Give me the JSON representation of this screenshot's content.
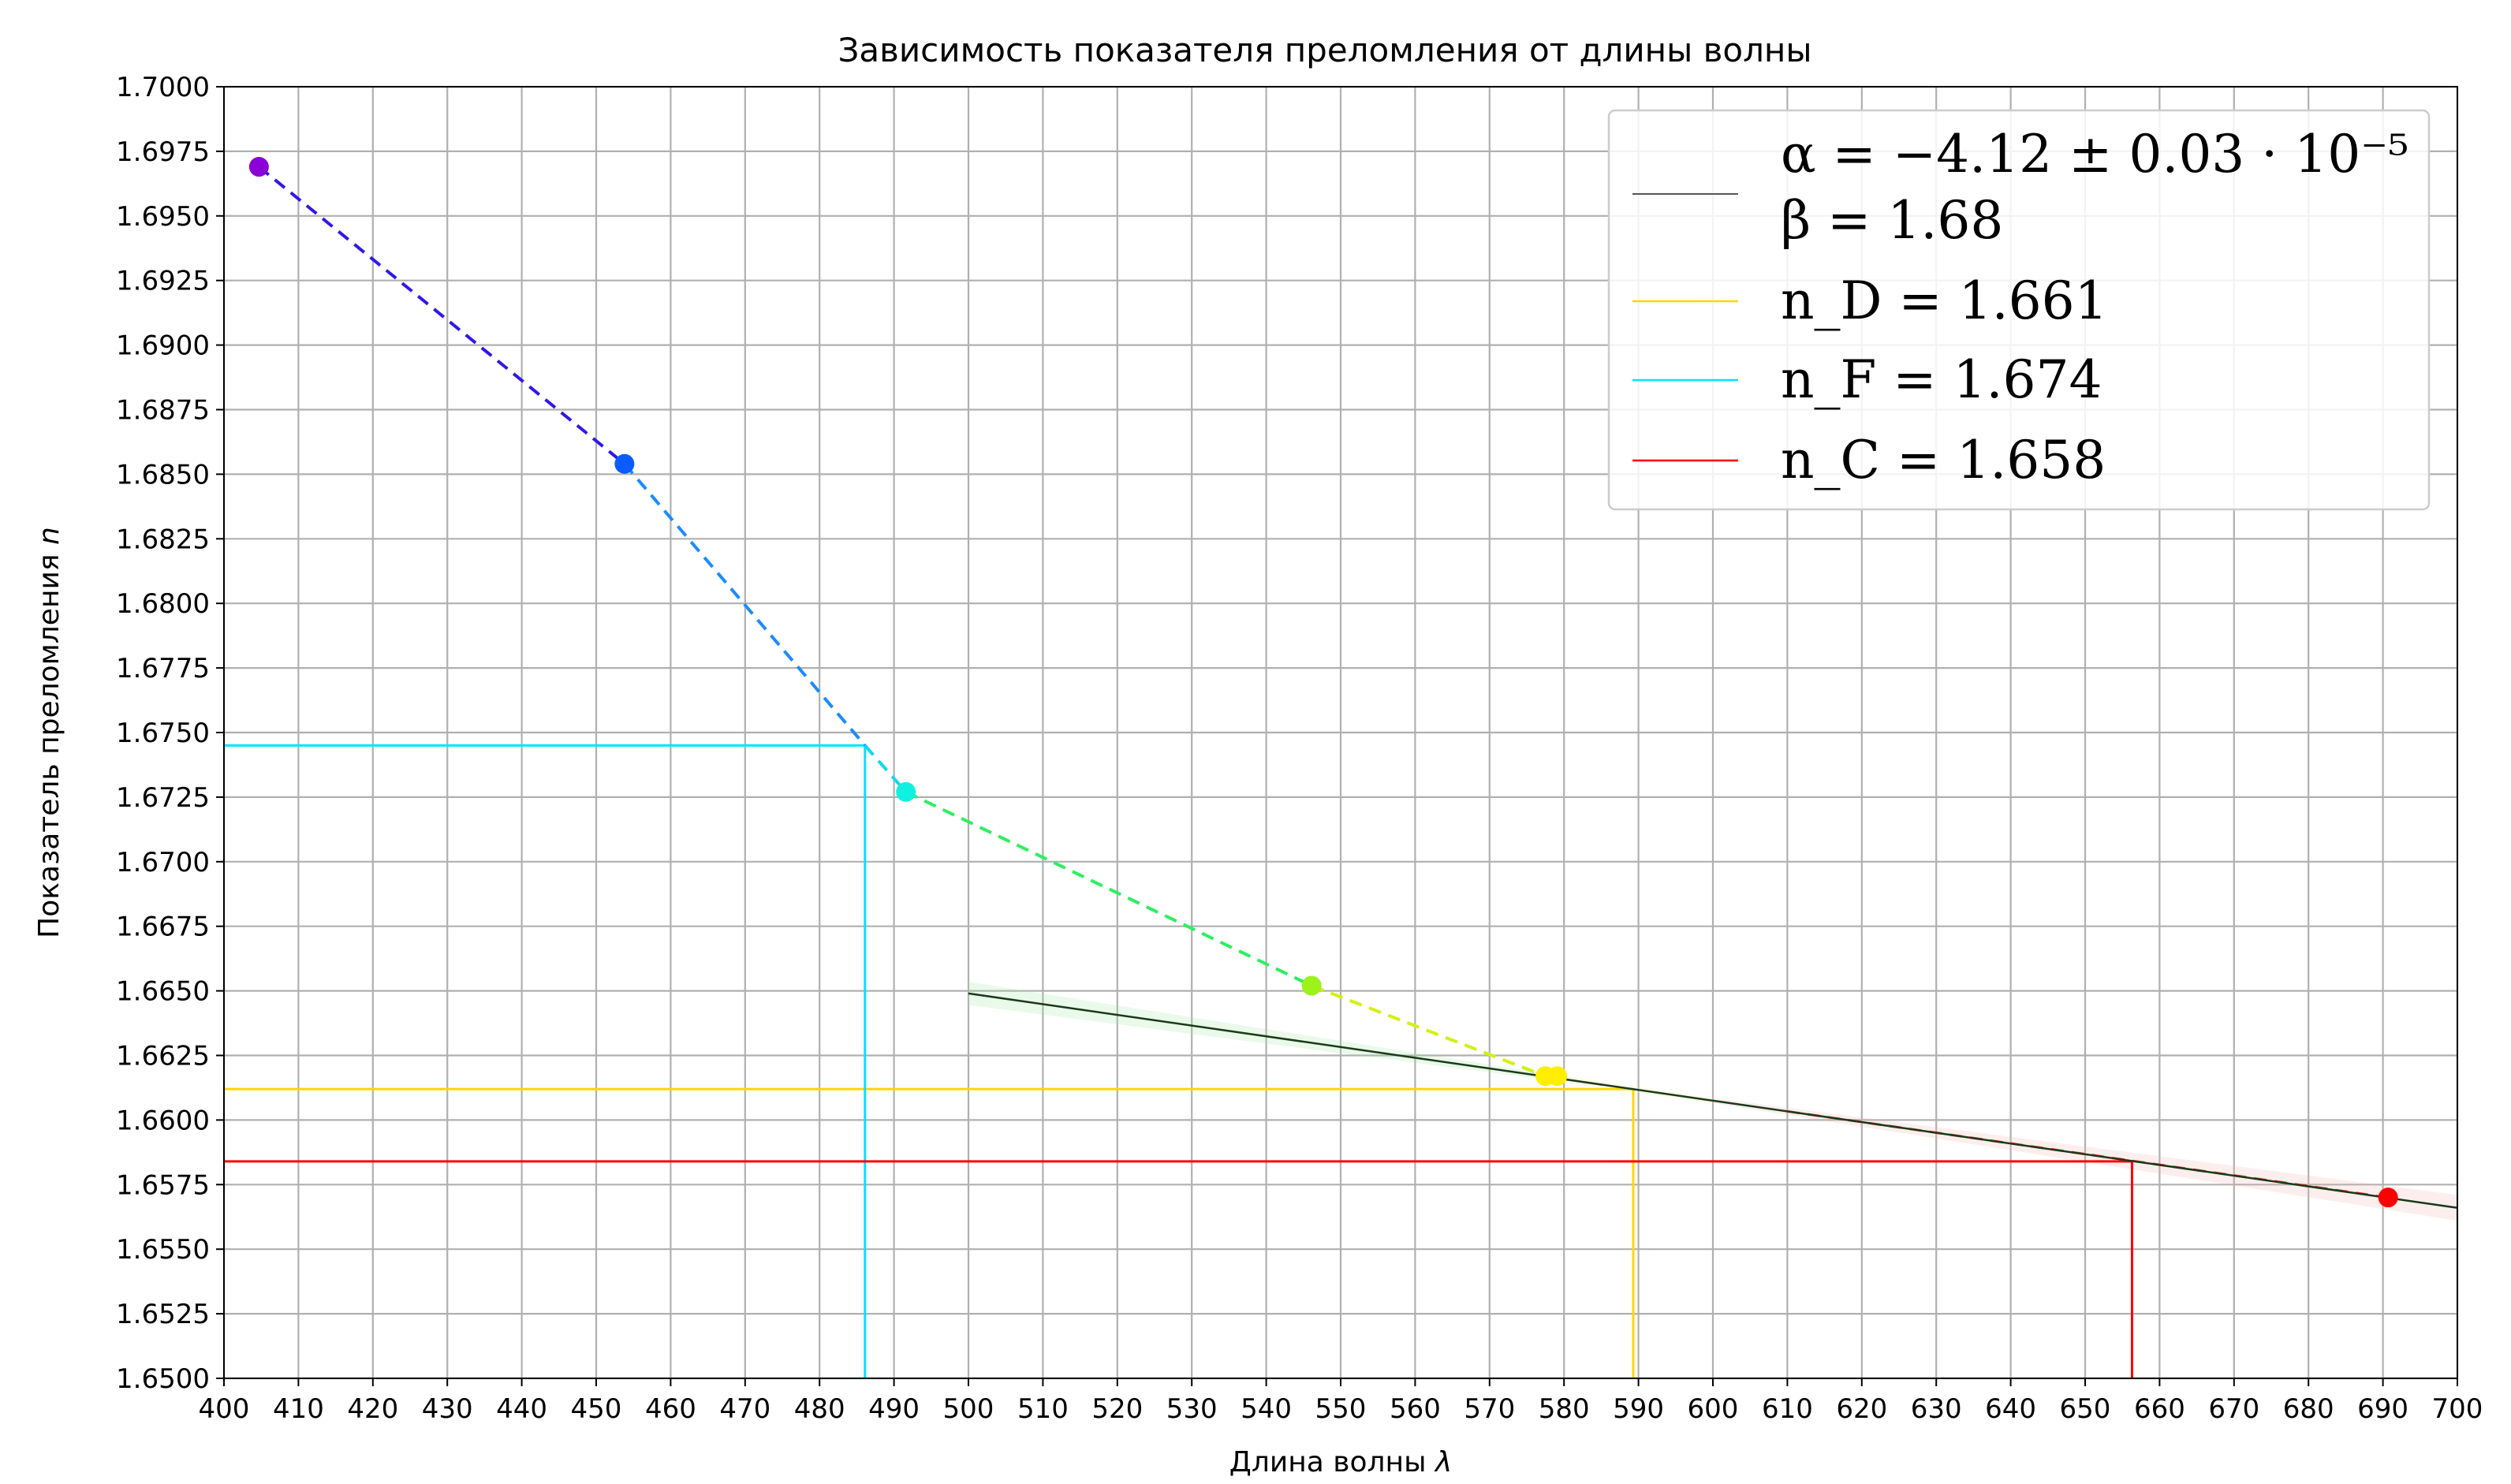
{
  "chart_data": {
    "type": "line",
    "title": "Зависимость показателя преломления от длины волны",
    "xlabel": "Длина волны",
    "xlabel_symbol": "λ",
    "ylabel": "Показатель преломления",
    "ylabel_symbol": "n",
    "xlim": [
      400,
      700
    ],
    "ylim": [
      1.65,
      1.7
    ],
    "xticks": [
      400,
      410,
      420,
      430,
      440,
      450,
      460,
      470,
      480,
      490,
      500,
      510,
      520,
      530,
      540,
      550,
      560,
      570,
      580,
      590,
      600,
      610,
      620,
      630,
      640,
      650,
      660,
      670,
      680,
      690,
      700
    ],
    "yticks": [
      "1.6500",
      "1.6525",
      "1.6550",
      "1.6575",
      "1.6600",
      "1.6625",
      "1.6650",
      "1.6675",
      "1.6700",
      "1.6725",
      "1.6750",
      "1.6775",
      "1.6800",
      "1.6825",
      "1.6850",
      "1.6875",
      "1.6900",
      "1.6925",
      "1.6950",
      "1.6975",
      "1.7000"
    ],
    "grid": true,
    "legend_position": "top-right",
    "measured_points": [
      {
        "x": 404.7,
        "y": 1.6969,
        "color": "#8b00d6"
      },
      {
        "x": 453.8,
        "y": 1.6854,
        "color": "#0a5cff"
      },
      {
        "x": 491.6,
        "y": 1.6727,
        "color": "#10f0e0"
      },
      {
        "x": 546.1,
        "y": 1.6652,
        "color": "#9cf21a"
      },
      {
        "x": 577.5,
        "y": 1.6617,
        "color": "#ffee00"
      },
      {
        "x": 579.1,
        "y": 1.6617,
        "color": "#ffee00"
      },
      {
        "x": 690.7,
        "y": 1.657,
        "color": "#ff0000"
      }
    ],
    "fit_line": {
      "x": [
        500,
        700
      ],
      "y": [
        1.6649,
        1.6566
      ],
      "color": "#1a3a1a"
    },
    "series": [
      {
        "name": "α = −4.12 ± 0.03 · 10⁻⁵",
        "name_line2": "β = 1.68",
        "color": "#555555"
      },
      {
        "name": "n_D = 1.661",
        "color": "#ffd700",
        "x": 589.3,
        "y": 1.6612
      },
      {
        "name": "n_F = 1.674",
        "color": "#00e5ff",
        "x": 486.1,
        "y": 1.6745
      },
      {
        "name": "n_C = 1.658",
        "color": "#ff0000",
        "x": 656.3,
        "y": 1.6584
      }
    ]
  }
}
